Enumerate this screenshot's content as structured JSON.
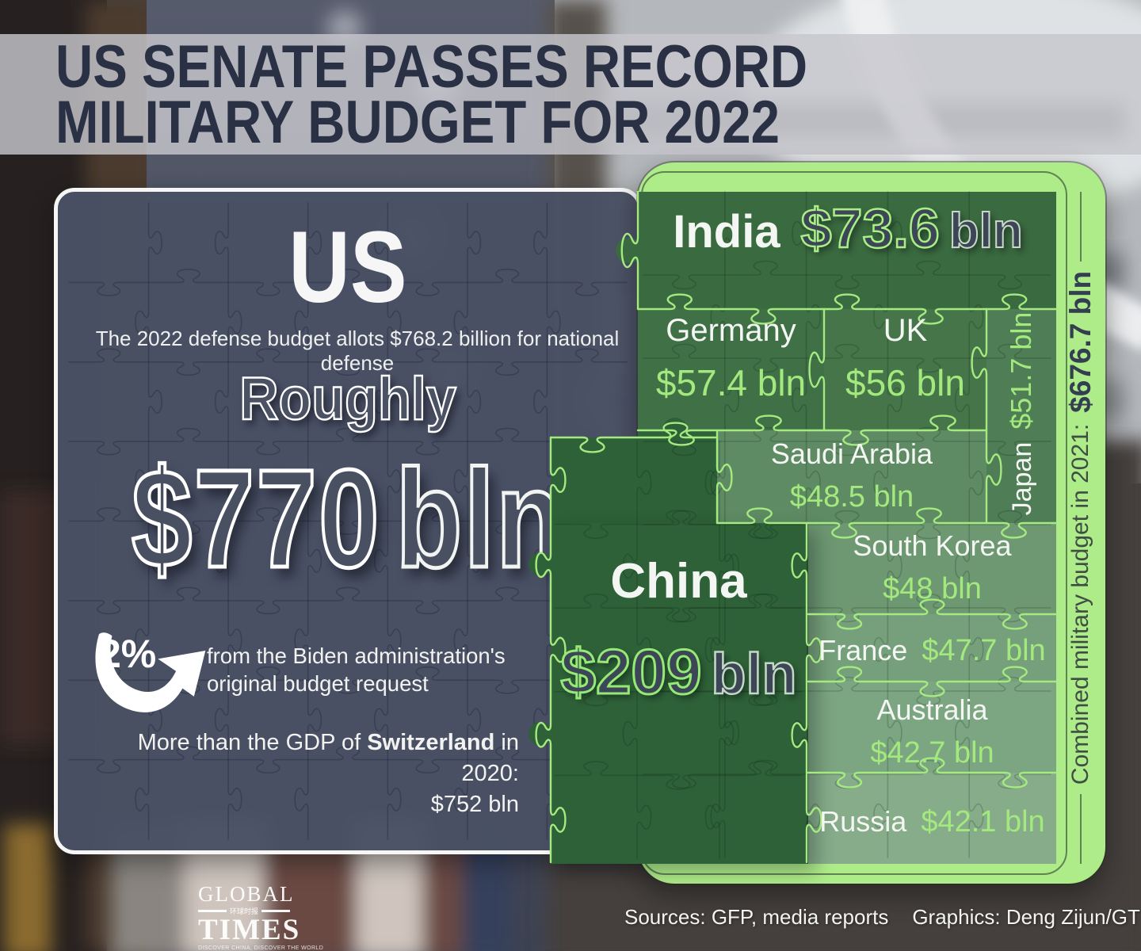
{
  "title": {
    "line1": "US SENATE PASSES RECORD",
    "line2": "MILITARY BUDGET FOR 2022"
  },
  "us_panel": {
    "heading": "US",
    "subtitle": "The 2022 defense budget allots $768.2 billion for national defense",
    "roughly_label": "Roughly",
    "amount": "$770",
    "amount_unit": "bln",
    "change_percent": "2%",
    "change_note_line1": "from the Biden administration's",
    "change_note_line2": "original budget request",
    "gdp_prefix": "More than the GDP of ",
    "gdp_country": "Switzerland",
    "gdp_suffix": " in 2020:",
    "gdp_value": "$752 bln"
  },
  "puzzle": {
    "india": {
      "name": "India",
      "value": "$73.6",
      "unit": "bln"
    },
    "germany": {
      "name": "Germany",
      "value": "$57.4 bln"
    },
    "uk": {
      "name": "UK",
      "value": "$56 bln"
    },
    "japan": {
      "name": "Japan",
      "value": "$51.7 bln"
    },
    "saudi_arabia": {
      "name": "Saudi Arabia",
      "value": "$48.5 bln"
    },
    "south_korea": {
      "name": "South Korea",
      "value": "$48 bln"
    },
    "france": {
      "name": "France",
      "value": "$47.7 bln"
    },
    "australia": {
      "name": "Australia",
      "value": "$42.7 bln"
    },
    "russia": {
      "name": "Russia",
      "value": "$42.1 bln"
    },
    "china": {
      "name": "China",
      "value": "$209",
      "unit": "bln"
    },
    "sidebar_label": "Combined military budget in 2021:",
    "sidebar_value": "$676.7 bln"
  },
  "footer": {
    "sources": "Sources: GFP, media reports",
    "graphics": "Graphics: Deng Zijun/GT",
    "logo_top": "GLOBAL",
    "logo_cn": "环球时报",
    "logo_bottom": "TIMES",
    "logo_tagline": "DISCOVER CHINA, DISCOVER THE WORLD"
  },
  "colors": {
    "accent_green": "#aeeb89",
    "value_green": "#a3e97e",
    "panel_gray": "#4a5264",
    "title_navy": "#2b3144"
  },
  "chart_data": {
    "type": "bar",
    "title": "US Senate passes record military budget for 2022",
    "categories": [
      "US",
      "China",
      "India",
      "Germany",
      "UK",
      "Japan",
      "Saudi Arabia",
      "South Korea",
      "France",
      "Australia",
      "Russia"
    ],
    "values": [
      770,
      209,
      73.6,
      57.4,
      56,
      51.7,
      48.5,
      48,
      47.7,
      42.7,
      42.1
    ],
    "unit": "$ bln",
    "annotations": [
      "The 2022 US defense budget allots $768.2 billion for national defense",
      "Roughly $770 bln, up 2% from the Biden administration's original budget request",
      "More than the GDP of Switzerland in 2020: $752 bln",
      "Combined military budget of the other 10 countries in 2021: $676.7 bln"
    ],
    "source": "Sources: GFP, media reports"
  }
}
